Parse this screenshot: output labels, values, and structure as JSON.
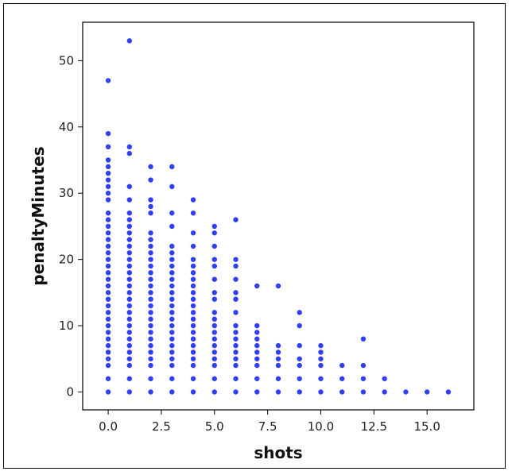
{
  "chart_data": {
    "type": "scatter",
    "title": "",
    "xlabel": "shots",
    "ylabel": "penaltyMinutes",
    "xlim": [
      -1.2,
      17.2
    ],
    "ylim": [
      -2.7,
      55.8
    ],
    "xticks": [
      0.0,
      2.5,
      5.0,
      7.5,
      10.0,
      12.5,
      15.0
    ],
    "xtick_labels": [
      "0.0",
      "2.5",
      "5.0",
      "7.5",
      "10.0",
      "12.5",
      "15.0"
    ],
    "yticks": [
      0,
      10,
      20,
      30,
      40,
      50
    ],
    "ytick_labels": [
      "0",
      "10",
      "20",
      "30",
      "40",
      "50"
    ],
    "grid": false,
    "marker_color": "#0a1ef0",
    "columns": [
      {
        "x": 0,
        "y": [
          0,
          2,
          4,
          5,
          6,
          7,
          8,
          9,
          10,
          11,
          12,
          13,
          14,
          15,
          16,
          17,
          18,
          19,
          20,
          21,
          22,
          23,
          24,
          25,
          26,
          27,
          29,
          30,
          31,
          32,
          33,
          34,
          35,
          37,
          39,
          47
        ]
      },
      {
        "x": 1,
        "y": [
          0,
          2,
          4,
          5,
          6,
          7,
          8,
          9,
          10,
          11,
          12,
          13,
          14,
          15,
          16,
          17,
          18,
          19,
          20,
          21,
          22,
          23,
          24,
          25,
          26,
          27,
          29,
          31,
          36,
          37,
          53
        ]
      },
      {
        "x": 2,
        "y": [
          0,
          2,
          4,
          5,
          6,
          7,
          8,
          9,
          10,
          11,
          12,
          13,
          14,
          15,
          16,
          17,
          18,
          19,
          20,
          21,
          22,
          23,
          24,
          27,
          28,
          29,
          32,
          34
        ]
      },
      {
        "x": 3,
        "y": [
          0,
          2,
          4,
          5,
          6,
          7,
          8,
          9,
          10,
          11,
          12,
          13,
          14,
          15,
          16,
          17,
          18,
          19,
          20,
          21,
          22,
          25,
          27,
          31,
          34
        ]
      },
      {
        "x": 4,
        "y": [
          0,
          2,
          4,
          5,
          6,
          7,
          8,
          9,
          10,
          11,
          12,
          13,
          14,
          15,
          16,
          17,
          18,
          19,
          20,
          22,
          24,
          27,
          29
        ]
      },
      {
        "x": 5,
        "y": [
          0,
          2,
          4,
          5,
          6,
          7,
          8,
          9,
          10,
          11,
          12,
          14,
          15,
          17,
          19,
          20,
          22,
          24,
          25
        ]
      },
      {
        "x": 6,
        "y": [
          0,
          2,
          4,
          5,
          6,
          7,
          8,
          9,
          10,
          12,
          14,
          15,
          17,
          19,
          20,
          26
        ]
      },
      {
        "x": 7,
        "y": [
          0,
          2,
          4,
          5,
          6,
          7,
          8,
          9,
          10,
          16
        ]
      },
      {
        "x": 8,
        "y": [
          0,
          2,
          4,
          5,
          6,
          7,
          16
        ]
      },
      {
        "x": 9,
        "y": [
          0,
          2,
          4,
          5,
          7,
          10,
          12
        ]
      },
      {
        "x": 10,
        "y": [
          0,
          2,
          4,
          5,
          6,
          7
        ]
      },
      {
        "x": 11,
        "y": [
          0,
          2,
          4
        ]
      },
      {
        "x": 12,
        "y": [
          0,
          2,
          4,
          8
        ]
      },
      {
        "x": 13,
        "y": [
          0,
          2
        ]
      },
      {
        "x": 14,
        "y": [
          0
        ]
      },
      {
        "x": 15,
        "y": [
          0
        ]
      },
      {
        "x": 16,
        "y": [
          0
        ]
      }
    ]
  }
}
